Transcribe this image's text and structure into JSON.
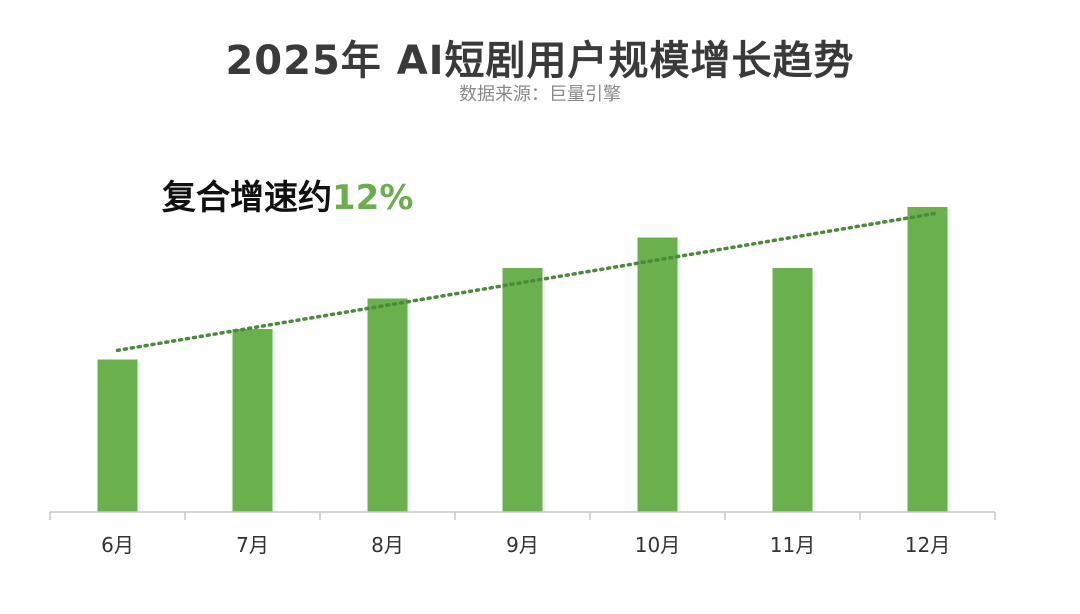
{
  "title": "2025年 AI短剧用户规模增长趋势",
  "subtitle": "数据来源：巨量引擎",
  "annotation": {
    "label": "复合增速约",
    "value": "12%"
  },
  "colors": {
    "bar": "#6ab04c",
    "trendline": "#4a8a3a",
    "axis": "#c8c8c8",
    "tick_text": "#333333"
  },
  "chart_data": {
    "type": "bar",
    "categories": [
      "6月",
      "7月",
      "8月",
      "9月",
      "10月",
      "11月",
      "12月"
    ],
    "values": [
      50,
      60,
      70,
      80,
      90,
      80,
      100
    ],
    "ylim": [
      0,
      100
    ],
    "title": "2025年 AI短剧用户规模增长趋势",
    "xlabel": "",
    "ylabel": "",
    "grid": false,
    "trendline": {
      "style": "dotted",
      "from": 53,
      "to": 99
    }
  }
}
